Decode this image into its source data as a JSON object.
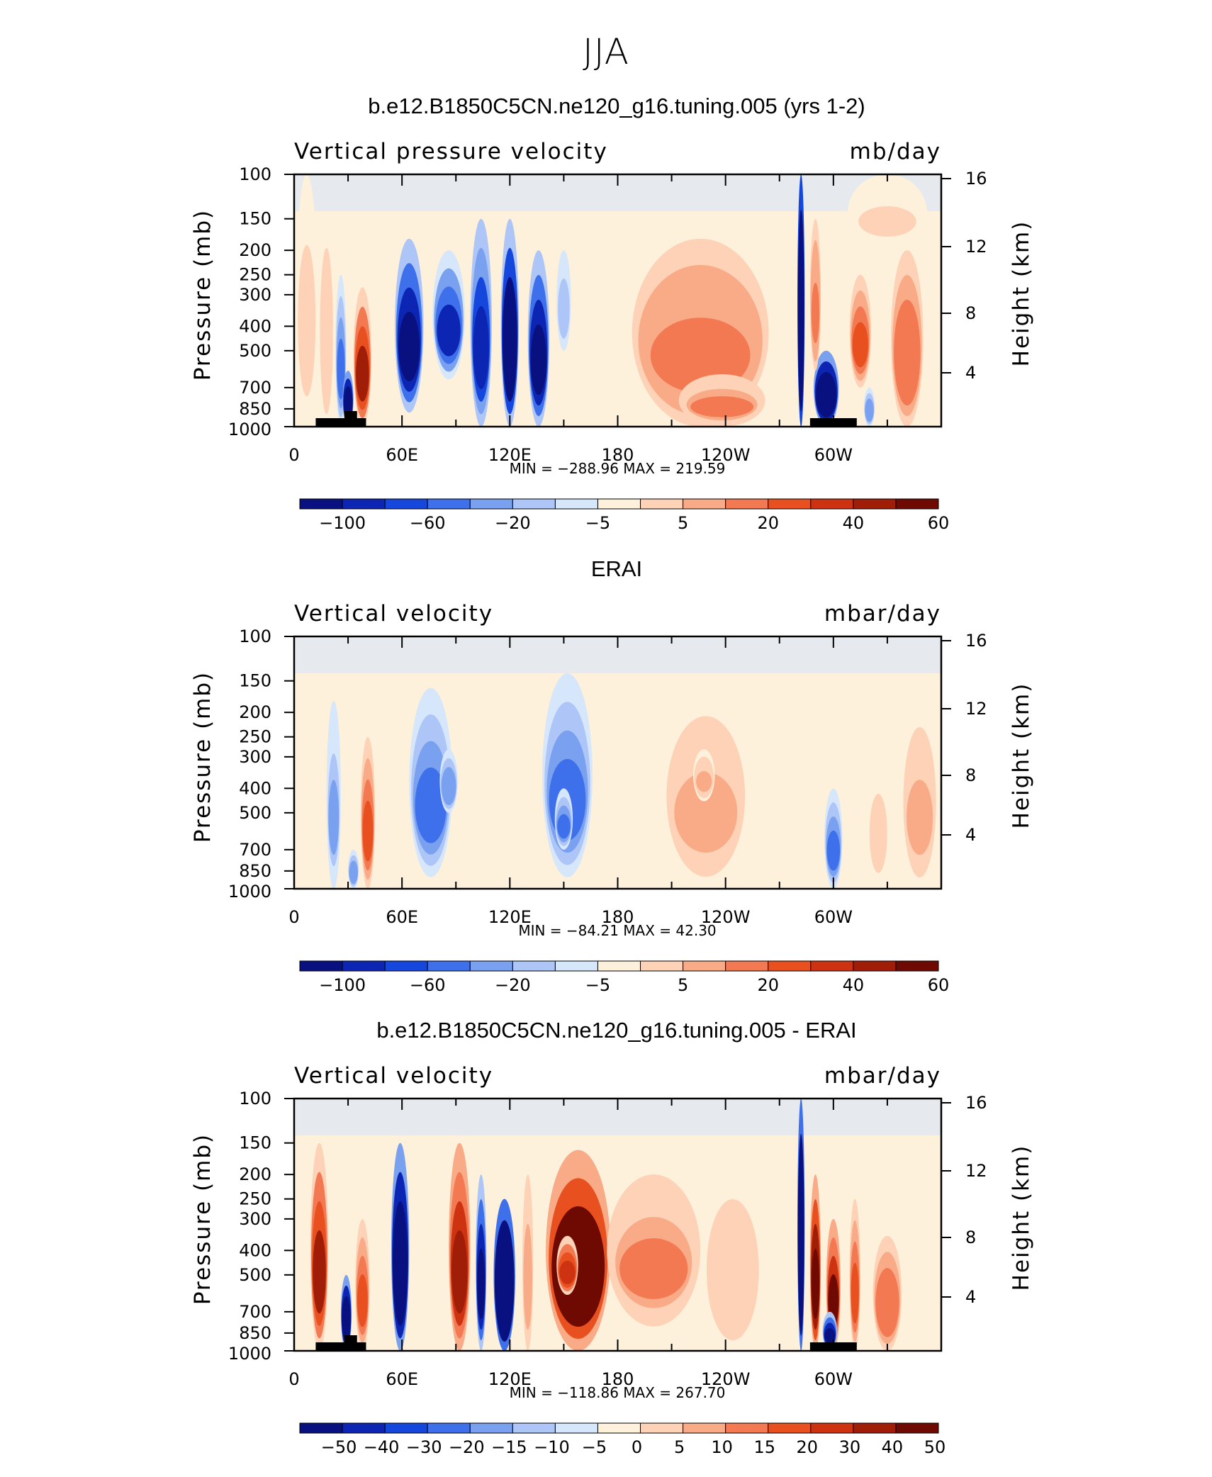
{
  "title": "JJA",
  "colors": {
    "p10": [
      "#08117f",
      "#0c26b3",
      "#1547dd",
      "#3d70ea",
      "#7aa1f0",
      "#aec6f7",
      "#d6e6fb",
      "#fef1dc",
      "#fdd2b6",
      "#f9ab87",
      "#f27952",
      "#e8501f",
      "#cd3310",
      "#a01d07",
      "#6e0a02"
    ],
    "p9": [
      "#08117f",
      "#0c26b3",
      "#1547dd",
      "#3d70ea",
      "#7aa1f0",
      "#aec6f7",
      "#d6e6fb",
      "#fef1dc",
      "#fdd2b6",
      "#f9ab87",
      "#f27952",
      "#e8501f",
      "#cd3310",
      "#a01d07",
      "#6e0a02"
    ]
  },
  "chart_data": [
    {
      "type": "heatmap",
      "title": "b.e12.B1850C5CN.ne120_g16.tuning.005 (yrs 1-2)",
      "variable": "Vertical pressure velocity",
      "units": "mb/day",
      "ylabel": "Pressure (mb)",
      "ylabel_right": "Height (km)",
      "pressure_ticks": [
        "100",
        "150",
        "200",
        "250",
        "300",
        "400",
        "500",
        "700",
        "850",
        "1000"
      ],
      "height_ticks": [
        "16",
        "12",
        "8",
        "4"
      ],
      "lon_ticks": [
        "0",
        "60E",
        "120E",
        "180",
        "120W",
        "60W"
      ],
      "stats": "MIN = −288.96   MAX = 219.59",
      "colorbar_labels": [
        "−100",
        "−60",
        "−20",
        "−5",
        "5",
        "20",
        "40",
        "60"
      ],
      "scale": 10,
      "features": [
        {
          "lon": 7,
          "w": 6,
          "p1": 100,
          "p2": 1000,
          "value": 6
        },
        {
          "lon": 18,
          "w": 4,
          "p1": 150,
          "p2": 1000,
          "value": 10
        },
        {
          "lon": 26,
          "w": 3,
          "p1": 250,
          "p2": 1000,
          "value": -30
        },
        {
          "lon": 30,
          "w": 3,
          "p1": 600,
          "p2": 1000,
          "value": -90
        },
        {
          "lon": 38,
          "w": 5,
          "p1": 280,
          "p2": 1000,
          "value": 40
        },
        {
          "lon": 64,
          "w": 8,
          "p1": 180,
          "p2": 880,
          "value": -55
        },
        {
          "lon": 86,
          "w": 9,
          "p1": 200,
          "p2": 650,
          "value": -40
        },
        {
          "lon": 104,
          "w": 6,
          "p1": 150,
          "p2": 1000,
          "value": -45
        },
        {
          "lon": 120,
          "w": 5,
          "p1": 150,
          "p2": 1000,
          "value": -70
        },
        {
          "lon": 136,
          "w": 6,
          "p1": 200,
          "p2": 1000,
          "value": -55
        },
        {
          "lon": 150,
          "w": 4,
          "p1": 200,
          "p2": 500,
          "value": -15
        },
        {
          "lon": 226,
          "w": 38,
          "p1": 180,
          "p2": 1000,
          "value": 22
        },
        {
          "lon": 238,
          "w": 24,
          "p1": 620,
          "p2": 1000,
          "value": 18
        },
        {
          "lon": 282,
          "w": 2,
          "p1": 100,
          "p2": 1000,
          "value": -140
        },
        {
          "lon": 296,
          "w": 7,
          "p1": 500,
          "p2": 1000,
          "value": -90
        },
        {
          "lon": 290,
          "w": 3,
          "p1": 150,
          "p2": 600,
          "value": 22
        },
        {
          "lon": 315,
          "w": 6,
          "p1": 250,
          "p2": 700,
          "value": 28
        },
        {
          "lon": 341,
          "w": 9,
          "p1": 200,
          "p2": 1000,
          "value": 24
        },
        {
          "lon": 320,
          "w": 3,
          "p1": 700,
          "p2": 1000,
          "value": -25
        },
        {
          "lon": 330,
          "w": 22,
          "p1": 100,
          "p2": 200,
          "value": 4
        }
      ]
    },
    {
      "type": "heatmap",
      "title": "ERAI",
      "variable": "Vertical velocity",
      "units": "mbar/day",
      "ylabel": "Pressure (mb)",
      "ylabel_right": "Height (km)",
      "pressure_ticks": [
        "100",
        "150",
        "200",
        "250",
        "300",
        "400",
        "500",
        "700",
        "850",
        "1000"
      ],
      "height_ticks": [
        "16",
        "12",
        "8",
        "4"
      ],
      "lon_ticks": [
        "0",
        "60E",
        "120E",
        "180",
        "120W",
        "60W"
      ],
      "stats": "MIN = −84.21   MAX =   42.30",
      "colorbar_labels": [
        "−100",
        "−60",
        "−20",
        "−5",
        "5",
        "20",
        "40",
        "60"
      ],
      "scale": 10,
      "features": [
        {
          "lon": 22,
          "w": 4,
          "p1": 180,
          "p2": 1000,
          "value": -20
        },
        {
          "lon": 33,
          "w": 3,
          "p1": 700,
          "p2": 1000,
          "value": -25
        },
        {
          "lon": 41,
          "w": 4,
          "p1": 250,
          "p2": 1000,
          "value": 26
        },
        {
          "lon": 76,
          "w": 12,
          "p1": 160,
          "p2": 900,
          "value": -30
        },
        {
          "lon": 86,
          "w": 5,
          "p1": 280,
          "p2": 500,
          "value": -25
        },
        {
          "lon": 152,
          "w": 14,
          "p1": 140,
          "p2": 900,
          "value": -32
        },
        {
          "lon": 150,
          "w": 5,
          "p1": 400,
          "p2": 700,
          "value": -30
        },
        {
          "lon": 229,
          "w": 24,
          "p1": 160,
          "p2": 1000,
          "value": 14
        },
        {
          "lon": 228,
          "w": 6,
          "p1": 280,
          "p2": 450,
          "value": 12
        },
        {
          "lon": 300,
          "w": 5,
          "p1": 400,
          "p2": 1000,
          "value": -30
        },
        {
          "lon": 325,
          "w": 6,
          "p1": 300,
          "p2": 1000,
          "value": 5
        },
        {
          "lon": 348,
          "w": 10,
          "p1": 180,
          "p2": 1000,
          "value": 14
        }
      ]
    },
    {
      "type": "heatmap",
      "title": "b.e12.B1850C5CN.ne120_g16.tuning.005 - ERAI",
      "variable": "Vertical velocity",
      "units": "mbar/day",
      "ylabel": "Pressure (mb)",
      "ylabel_right": "Height (km)",
      "pressure_ticks": [
        "100",
        "150",
        "200",
        "250",
        "300",
        "400",
        "500",
        "700",
        "850",
        "1000"
      ],
      "height_ticks": [
        "16",
        "12",
        "8",
        "4"
      ],
      "lon_ticks": [
        "0",
        "60E",
        "120E",
        "180",
        "120W",
        "60W"
      ],
      "stats": "MIN = −118.86   MAX = 267.70",
      "colorbar_labels": [
        "−50",
        "−40",
        "−30",
        "−20",
        "−15",
        "−10",
        "−5",
        "0",
        "5",
        "10",
        "15",
        "20",
        "30",
        "40",
        "50"
      ],
      "scale": 5,
      "features": [
        {
          "lon": 14,
          "w": 5,
          "p1": 150,
          "p2": 1000,
          "value": 20
        },
        {
          "lon": 29,
          "w": 3,
          "p1": 500,
          "p2": 1000,
          "value": -45
        },
        {
          "lon": 38,
          "w": 4,
          "p1": 300,
          "p2": 1000,
          "value": 14
        },
        {
          "lon": 59,
          "w": 5,
          "p1": 150,
          "p2": 1000,
          "value": -45
        },
        {
          "lon": 92,
          "w": 6,
          "p1": 150,
          "p2": 1000,
          "value": 22
        },
        {
          "lon": 104,
          "w": 3,
          "p1": 200,
          "p2": 1000,
          "value": -28
        },
        {
          "lon": 117,
          "w": 6,
          "p1": 250,
          "p2": 1000,
          "value": -55
        },
        {
          "lon": 130,
          "w": 3,
          "p1": 200,
          "p2": 1000,
          "value": 8
        },
        {
          "lon": 158,
          "w": 18,
          "p1": 160,
          "p2": 1000,
          "value": 32
        },
        {
          "lon": 152,
          "w": 6,
          "p1": 350,
          "p2": 600,
          "value": 18
        },
        {
          "lon": 200,
          "w": 26,
          "p1": 200,
          "p2": 800,
          "value": 10
        },
        {
          "lon": 244,
          "w": 16,
          "p1": 200,
          "p2": 1000,
          "value": 5
        },
        {
          "lon": 282,
          "w": 2,
          "p1": 100,
          "p2": 1000,
          "value": -60
        },
        {
          "lon": 290,
          "w": 3,
          "p1": 200,
          "p2": 1000,
          "value": 28
        },
        {
          "lon": 300,
          "w": 4,
          "p1": 300,
          "p2": 1000,
          "value": 24
        },
        {
          "lon": 312,
          "w": 3,
          "p1": 250,
          "p2": 1000,
          "value": 16
        },
        {
          "lon": 298,
          "w": 4,
          "p1": 700,
          "p2": 1000,
          "value": -30
        },
        {
          "lon": 330,
          "w": 8,
          "p1": 350,
          "p2": 1000,
          "value": 12
        }
      ]
    }
  ]
}
